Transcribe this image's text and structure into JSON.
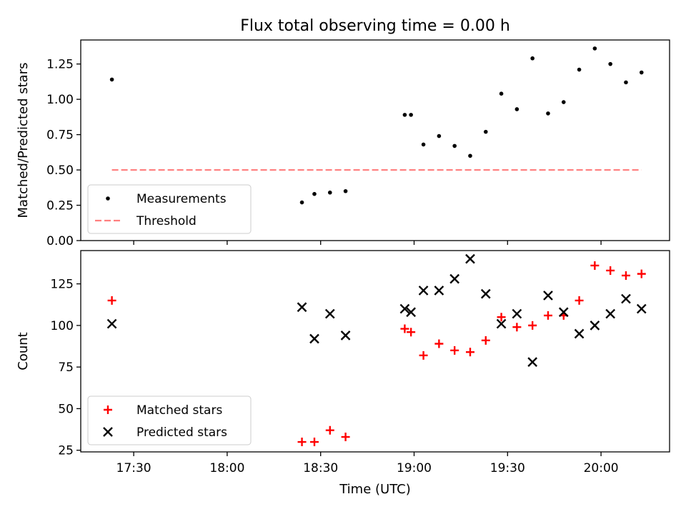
{
  "figure": {
    "title": "Flux total observing time = 0.00 h",
    "xlabel": "Time (UTC)"
  },
  "chart_data": [
    {
      "type": "scatter",
      "ylabel": "Matched/Predicted stars",
      "xlim": [
        "17:13",
        "20:22"
      ],
      "ylim": [
        0,
        1.42
      ],
      "yticks": [
        0.0,
        0.25,
        0.5,
        0.75,
        1.0,
        1.25
      ],
      "ytick_labels": [
        "0.00",
        "0.25",
        "0.50",
        "0.75",
        "1.00",
        "1.25"
      ],
      "legend_position": "lower-left",
      "series": [
        {
          "name": "Measurements",
          "marker": "dot",
          "color": "#000000",
          "x": [
            "17:23",
            "18:24",
            "18:28",
            "18:33",
            "18:38",
            "18:57",
            "18:59",
            "19:03",
            "19:08",
            "19:13",
            "19:18",
            "19:23",
            "19:28",
            "19:33",
            "19:38",
            "19:43",
            "19:48",
            "19:53",
            "19:58",
            "20:03",
            "20:08",
            "20:13"
          ],
          "y": [
            1.14,
            0.27,
            0.33,
            0.34,
            0.35,
            0.89,
            0.89,
            0.68,
            0.74,
            0.67,
            0.6,
            0.77,
            1.04,
            0.93,
            1.29,
            0.9,
            0.98,
            1.21,
            1.36,
            1.25,
            1.12,
            1.19
          ]
        },
        {
          "name": "Threshold",
          "style": "dashed",
          "color": "#ff7f7f",
          "x": [
            "17:23",
            "20:13"
          ],
          "y": [
            0.5,
            0.5
          ]
        }
      ]
    },
    {
      "type": "scatter",
      "ylabel": "Count",
      "xlabel": "Time (UTC)",
      "xlim": [
        "17:13",
        "20:22"
      ],
      "ylim": [
        24,
        145
      ],
      "yticks": [
        25,
        50,
        75,
        100,
        125
      ],
      "ytick_labels": [
        "25",
        "50",
        "75",
        "100",
        "125"
      ],
      "xticks": [
        "17:30",
        "18:00",
        "18:30",
        "19:00",
        "19:30",
        "20:00"
      ],
      "legend_position": "lower-left",
      "series": [
        {
          "name": "Matched stars",
          "marker": "plus",
          "color": "#ff0000",
          "x": [
            "17:23",
            "18:24",
            "18:28",
            "18:33",
            "18:38",
            "18:57",
            "18:59",
            "19:03",
            "19:08",
            "19:13",
            "19:18",
            "19:23",
            "19:28",
            "19:33",
            "19:38",
            "19:43",
            "19:48",
            "19:53",
            "19:58",
            "20:03",
            "20:08",
            "20:13"
          ],
          "y": [
            115,
            30,
            30,
            37,
            33,
            98,
            96,
            82,
            89,
            85,
            84,
            91,
            105,
            99,
            100,
            106,
            106,
            115,
            136,
            133,
            130,
            131
          ]
        },
        {
          "name": "Predicted stars",
          "marker": "x",
          "color": "#000000",
          "x": [
            "17:23",
            "18:24",
            "18:28",
            "18:33",
            "18:38",
            "18:57",
            "18:59",
            "19:03",
            "19:08",
            "19:13",
            "19:18",
            "19:23",
            "19:28",
            "19:33",
            "19:38",
            "19:43",
            "19:48",
            "19:53",
            "19:58",
            "20:03",
            "20:08",
            "20:13"
          ],
          "y": [
            101,
            111,
            92,
            107,
            94,
            110,
            108,
            121,
            121,
            128,
            140,
            119,
            101,
            107,
            78,
            118,
            108,
            95,
            100,
            107,
            116,
            110
          ]
        }
      ]
    }
  ]
}
